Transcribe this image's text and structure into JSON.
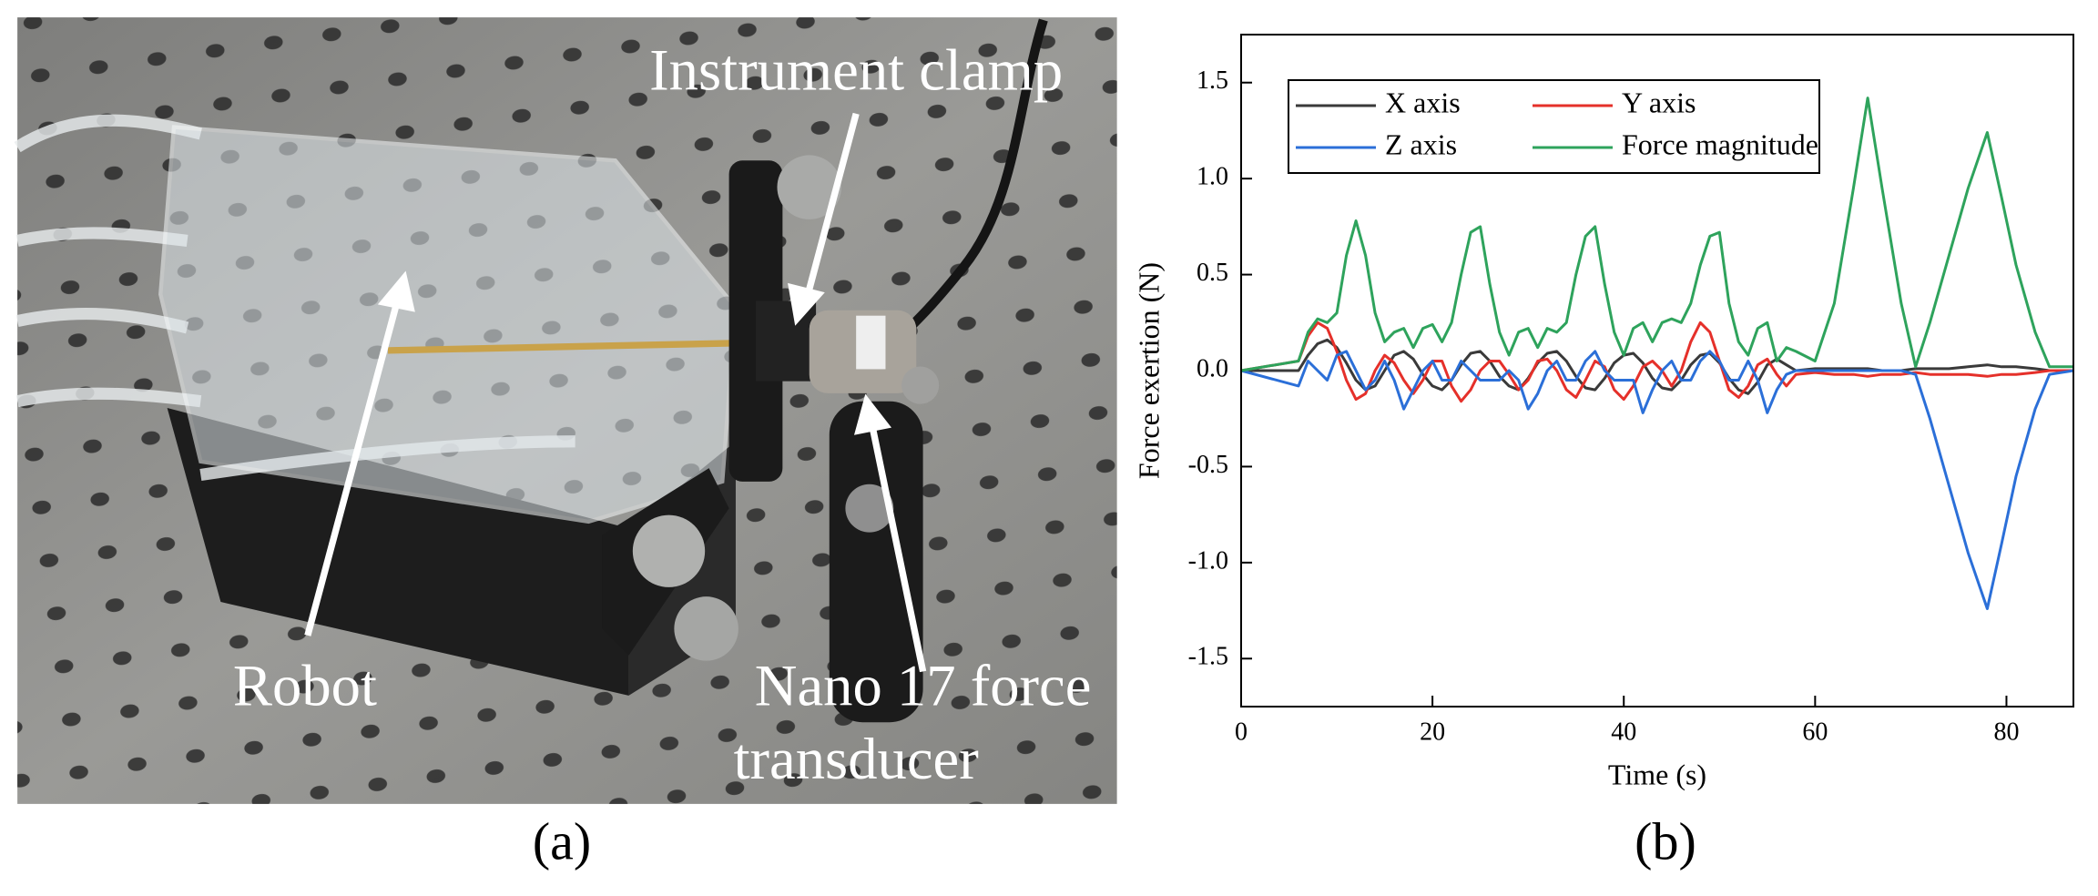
{
  "panel_a": {
    "labels": {
      "clamp": "Instrument clamp",
      "robot": "Robot",
      "transducer": [
        "Nano 17 force",
        "transducer"
      ]
    }
  },
  "captions": [
    "(a)",
    "(b)"
  ],
  "chart_data": {
    "type": "line",
    "xlabel": "Time (s)",
    "ylabel": "Force exertion (N)",
    "xlim": [
      0,
      87
    ],
    "ylim": [
      -1.75,
      1.75
    ],
    "xticks": [
      0,
      20,
      40,
      60,
      80
    ],
    "yticks": [
      -1.5,
      {
        "value": -1,
        "label": "-1.0"
      },
      -0.5,
      {
        "value": 0,
        "label": "0.0"
      },
      0.5,
      {
        "value": 1,
        "label": "1.0"
      },
      1.5
    ],
    "legend": "upper left",
    "legend_columns": 2,
    "x": [
      0,
      6,
      7,
      8,
      9,
      10,
      11,
      12,
      13,
      14,
      15,
      16,
      17,
      18,
      19,
      20,
      21,
      22,
      23,
      24,
      25,
      26,
      27,
      28,
      29,
      30,
      31,
      32,
      33,
      34,
      35,
      36,
      37,
      38,
      39,
      40,
      41,
      42,
      43,
      44,
      45,
      46,
      47,
      48,
      49,
      50,
      51,
      52,
      53,
      54,
      55,
      56,
      57,
      58,
      60,
      62,
      64,
      65.5,
      67,
      69,
      70.5,
      72,
      74,
      76,
      78,
      79.5,
      81,
      83,
      84.5,
      87
    ],
    "series": [
      {
        "name": "X axis",
        "color": "#3a3a3a",
        "values": [
          0,
          0,
          0.08,
          0.14,
          0.16,
          0.12,
          0.04,
          -0.05,
          -0.1,
          -0.08,
          0,
          0.08,
          0.1,
          0.06,
          -0.02,
          -0.08,
          -0.1,
          -0.05,
          0.03,
          0.09,
          0.1,
          0.05,
          -0.03,
          -0.08,
          -0.1,
          -0.04,
          0.04,
          0.09,
          0.1,
          0.05,
          -0.03,
          -0.09,
          -0.1,
          -0.04,
          0.04,
          0.08,
          0.09,
          0.04,
          -0.04,
          -0.09,
          -0.1,
          -0.05,
          0.03,
          0.08,
          0.09,
          0.04,
          -0.04,
          -0.1,
          -0.12,
          -0.06,
          0.03,
          0.06,
          0.03,
          0,
          0.01,
          0.01,
          0.01,
          0.01,
          0,
          0,
          0.01,
          0.01,
          0.01,
          0.02,
          0.03,
          0.02,
          0.02,
          0.01,
          0,
          0
        ]
      },
      {
        "name": "Y axis",
        "color": "#e5302a",
        "values": [
          0,
          0.05,
          0.18,
          0.25,
          0.22,
          0.1,
          -0.05,
          -0.15,
          -0.12,
          0,
          0.08,
          0.04,
          -0.05,
          -0.12,
          -0.05,
          0.05,
          0.05,
          -0.08,
          -0.16,
          -0.1,
          0,
          0.05,
          0.05,
          -0.02,
          -0.1,
          -0.05,
          0.05,
          0.06,
          0,
          -0.1,
          -0.14,
          -0.05,
          0.05,
          0.02,
          -0.1,
          -0.15,
          -0.08,
          0.02,
          0.05,
          0,
          -0.08,
          0,
          0.15,
          0.25,
          0.2,
          0.05,
          -0.1,
          -0.14,
          -0.08,
          0.03,
          0.06,
          -0.02,
          -0.08,
          -0.02,
          -0.01,
          -0.02,
          -0.02,
          -0.03,
          -0.02,
          -0.02,
          -0.01,
          -0.02,
          -0.02,
          -0.02,
          -0.03,
          -0.02,
          -0.02,
          -0.01,
          0,
          0
        ]
      },
      {
        "name": "Z axis",
        "color": "#2b6fd8",
        "values": [
          0,
          -0.08,
          0.05,
          0,
          -0.05,
          0.08,
          0.1,
          0,
          -0.1,
          -0.05,
          0.05,
          -0.05,
          -0.2,
          -0.1,
          0,
          0.05,
          -0.05,
          -0.05,
          0.05,
          0,
          -0.05,
          -0.05,
          -0.05,
          0,
          -0.05,
          -0.2,
          -0.12,
          0,
          0.05,
          -0.05,
          -0.05,
          0.05,
          0.1,
          0,
          -0.05,
          -0.05,
          -0.05,
          -0.22,
          -0.1,
          0,
          0.05,
          -0.05,
          -0.05,
          0.05,
          0.1,
          0.05,
          -0.05,
          -0.05,
          0.05,
          -0.05,
          -0.22,
          -0.1,
          -0.02,
          0,
          0,
          0,
          0,
          0,
          0,
          0,
          -0.02,
          -0.25,
          -0.6,
          -0.95,
          -1.24,
          -0.9,
          -0.55,
          -0.2,
          -0.02,
          0
        ]
      },
      {
        "name": "Force magnitude",
        "color": "#2ea35c",
        "values": [
          0,
          0.05,
          0.2,
          0.27,
          0.25,
          0.3,
          0.6,
          0.78,
          0.6,
          0.3,
          0.15,
          0.2,
          0.22,
          0.12,
          0.22,
          0.24,
          0.15,
          0.25,
          0.5,
          0.72,
          0.75,
          0.45,
          0.2,
          0.08,
          0.2,
          0.22,
          0.12,
          0.22,
          0.2,
          0.25,
          0.5,
          0.7,
          0.75,
          0.45,
          0.2,
          0.08,
          0.22,
          0.25,
          0.15,
          0.25,
          0.27,
          0.25,
          0.35,
          0.55,
          0.7,
          0.72,
          0.35,
          0.15,
          0.08,
          0.22,
          0.25,
          0.05,
          0.12,
          0.1,
          0.05,
          0.35,
          0.95,
          1.42,
          0.95,
          0.35,
          0.02,
          0.25,
          0.6,
          0.95,
          1.24,
          0.9,
          0.55,
          0.2,
          0.02,
          0.02
        ]
      }
    ]
  }
}
